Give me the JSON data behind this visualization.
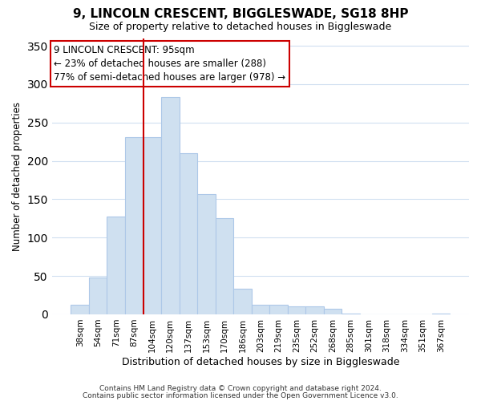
{
  "title": "9, LINCOLN CRESCENT, BIGGLESWADE, SG18 8HP",
  "subtitle": "Size of property relative to detached houses in Biggleswade",
  "xlabel": "Distribution of detached houses by size in Biggleswade",
  "ylabel": "Number of detached properties",
  "bar_labels": [
    "38sqm",
    "54sqm",
    "71sqm",
    "87sqm",
    "104sqm",
    "120sqm",
    "137sqm",
    "153sqm",
    "170sqm",
    "186sqm",
    "203sqm",
    "219sqm",
    "235sqm",
    "252sqm",
    "268sqm",
    "285sqm",
    "301sqm",
    "318sqm",
    "334sqm",
    "351sqm",
    "367sqm"
  ],
  "bar_heights": [
    12,
    48,
    127,
    231,
    231,
    283,
    210,
    157,
    125,
    33,
    13,
    12,
    10,
    10,
    7,
    1,
    0,
    0,
    0,
    0,
    1
  ],
  "bar_color": "#cfe0f0",
  "bar_edge_color": "#adc8e8",
  "vline_color": "#cc0000",
  "ylim": [
    0,
    360
  ],
  "yticks": [
    0,
    50,
    100,
    150,
    200,
    250,
    300,
    350
  ],
  "annotation_title": "9 LINCOLN CRESCENT: 95sqm",
  "annotation_line1": "← 23% of detached houses are smaller (288)",
  "annotation_line2": "77% of semi-detached houses are larger (978) →",
  "footer1": "Contains HM Land Registry data © Crown copyright and database right 2024.",
  "footer2": "Contains public sector information licensed under the Open Government Licence v3.0.",
  "background_color": "#ffffff",
  "grid_color": "#d0dff0",
  "title_fontsize": 11,
  "subtitle_fontsize": 9,
  "ylabel_fontsize": 8.5,
  "xlabel_fontsize": 9,
  "tick_fontsize": 7.5,
  "annotation_fontsize": 8.5,
  "footer_fontsize": 6.5
}
